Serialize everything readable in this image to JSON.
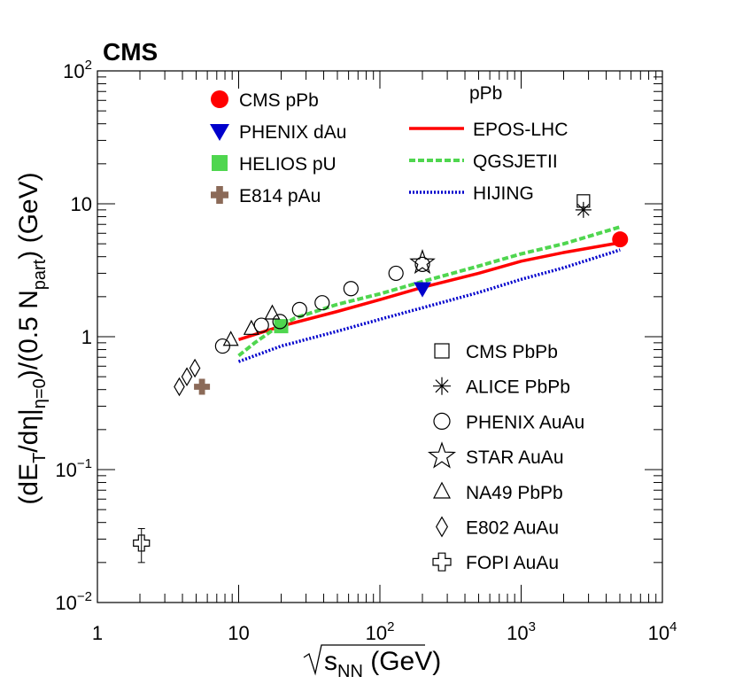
{
  "chart_data": {
    "type": "scatter",
    "experiment_label": "CMS",
    "xscale": "log",
    "yscale": "log",
    "xlim": [
      1,
      10000
    ],
    "ylim": [
      0.01,
      100
    ],
    "x_ticks": [
      {
        "value": 1,
        "base": "1",
        "exp": ""
      },
      {
        "value": 10,
        "base": "10",
        "exp": ""
      },
      {
        "value": 100,
        "base": "10",
        "exp": "2"
      },
      {
        "value": 1000,
        "base": "10",
        "exp": "3"
      },
      {
        "value": 10000,
        "base": "10",
        "exp": "4"
      }
    ],
    "y_ticks": [
      {
        "value": 0.01,
        "base": "10",
        "exp": "−2"
      },
      {
        "value": 0.1,
        "base": "10",
        "exp": "−1"
      },
      {
        "value": 1,
        "base": "1",
        "exp": ""
      },
      {
        "value": 10,
        "base": "10",
        "exp": ""
      },
      {
        "value": 100,
        "base": "10",
        "exp": "2"
      }
    ],
    "xlabel": {
      "pre": "",
      "main": "s",
      "sub": "NN",
      "post": " (GeV)"
    },
    "ylabel": {
      "part1": "(dE",
      "sub1": "T",
      "part2": "/dη|",
      "sub2": "η=0",
      "part3": ")/(0.5 N",
      "sub3": "part",
      "part4": ") (GeV)"
    },
    "model_header": "pPb",
    "series": [
      {
        "name": "CMS pPb",
        "marker": "circle-filled",
        "color": "#ff0000",
        "points": [
          [
            5020,
            5.4
          ]
        ]
      },
      {
        "name": "PHENIX dAu",
        "marker": "triangle-down-filled",
        "color": "#0000cc",
        "points": [
          [
            200,
            2.3
          ]
        ]
      },
      {
        "name": "HELIOS pU",
        "marker": "square-filled",
        "color": "#4fd64f",
        "points": [
          [
            20,
            1.2
          ]
        ]
      },
      {
        "name": "E814 pAu",
        "marker": "cross-filled",
        "color": "#8b6a58",
        "points": [
          [
            5.5,
            0.42
          ]
        ]
      },
      {
        "name": "CMS PbPb",
        "marker": "square-open",
        "color": "#000000",
        "points": [
          [
            2760,
            10.5
          ]
        ]
      },
      {
        "name": "ALICE PbPb",
        "marker": "asterisk",
        "color": "#000000",
        "points": [
          [
            2760,
            9.0
          ]
        ]
      },
      {
        "name": "PHENIX AuAu",
        "marker": "circle-open",
        "color": "#000000",
        "points": [
          [
            7.7,
            0.85
          ],
          [
            14.5,
            1.22
          ],
          [
            19.6,
            1.3
          ],
          [
            27,
            1.6
          ],
          [
            39,
            1.8
          ],
          [
            62.4,
            2.3
          ],
          [
            130,
            3.0
          ],
          [
            200,
            3.5
          ]
        ]
      },
      {
        "name": "STAR AuAu",
        "marker": "star-open",
        "color": "#000000",
        "points": [
          [
            200,
            3.6
          ]
        ]
      },
      {
        "name": "NA49 PbPb",
        "marker": "triangle-open",
        "color": "#000000",
        "points": [
          [
            8.8,
            0.95
          ],
          [
            12.3,
            1.15
          ],
          [
            17.3,
            1.5
          ]
        ]
      },
      {
        "name": "E802 AuAu",
        "marker": "diamond-open",
        "color": "#000000",
        "points": [
          [
            3.8,
            0.42
          ],
          [
            4.3,
            0.5
          ],
          [
            4.9,
            0.58
          ]
        ]
      },
      {
        "name": "FOPI AuAu",
        "marker": "cross-open",
        "color": "#000000",
        "points": [
          [
            2.05,
            0.028
          ]
        ],
        "yerr": [
          [
            0.02,
            0.036
          ]
        ]
      }
    ],
    "curves": [
      {
        "name": "EPOS-LHC",
        "style": "solid",
        "color": "#ff0000",
        "points": [
          [
            10,
            0.95
          ],
          [
            20,
            1.2
          ],
          [
            50,
            1.55
          ],
          [
            100,
            1.9
          ],
          [
            200,
            2.35
          ],
          [
            500,
            3.0
          ],
          [
            1000,
            3.7
          ],
          [
            2000,
            4.3
          ],
          [
            5020,
            5.1
          ]
        ]
      },
      {
        "name": "QGSJETII",
        "style": "dashed",
        "color": "#4fd64f",
        "points": [
          [
            10,
            0.72
          ],
          [
            13,
            0.9
          ],
          [
            17,
            1.1
          ],
          [
            25,
            1.38
          ],
          [
            50,
            1.75
          ],
          [
            100,
            2.1
          ],
          [
            200,
            2.6
          ],
          [
            500,
            3.4
          ],
          [
            1000,
            4.2
          ],
          [
            2000,
            5.0
          ],
          [
            5020,
            6.7
          ]
        ]
      },
      {
        "name": "HIJING",
        "style": "dotted",
        "color": "#0000cc",
        "points": [
          [
            10,
            0.65
          ],
          [
            20,
            0.85
          ],
          [
            50,
            1.1
          ],
          [
            100,
            1.35
          ],
          [
            200,
            1.65
          ],
          [
            500,
            2.15
          ],
          [
            1000,
            2.7
          ],
          [
            2000,
            3.3
          ],
          [
            5020,
            4.5
          ]
        ]
      }
    ],
    "legend_left": [
      "CMS pPb",
      "PHENIX dAu",
      "HELIOS pU",
      "E814 pAu"
    ],
    "legend_models": [
      "EPOS-LHC",
      "QGSJETII",
      "HIJING"
    ],
    "legend_right": [
      "CMS PbPb",
      "ALICE PbPb",
      "PHENIX AuAu",
      "STAR AuAu",
      "NA49 PbPb",
      "E802 AuAu",
      "FOPI AuAu"
    ]
  }
}
